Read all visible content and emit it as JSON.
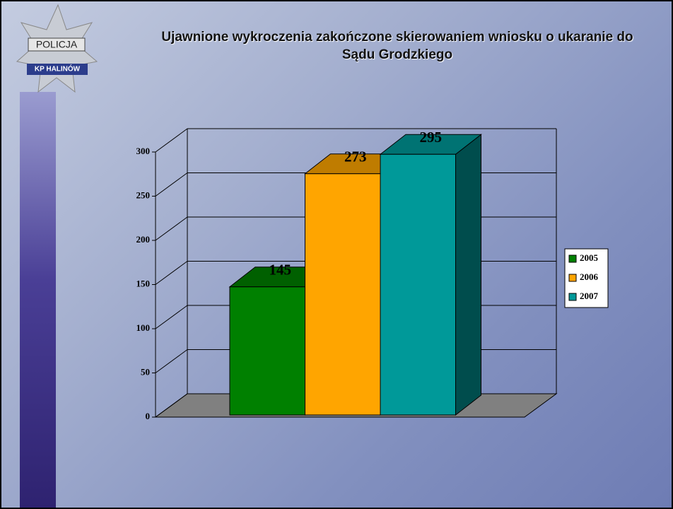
{
  "logo": {
    "top": "POLICJA",
    "bottom": "KP HALINÓW"
  },
  "chart_data": {
    "type": "bar3d",
    "title": "Ujawnione wykroczenia zakończone skierowaniem wniosku o ukaranie do Sądu Grodzkiego",
    "categories": [
      null
    ],
    "series": [
      {
        "name": "2005",
        "color": "#008000",
        "values": [
          145
        ]
      },
      {
        "name": "2006",
        "color": "#ffa500",
        "values": [
          273
        ]
      },
      {
        "name": "2007",
        "color": "#009999",
        "values": [
          295
        ]
      }
    ],
    "ylim": [
      0,
      300
    ],
    "yticks": [
      0,
      50,
      100,
      150,
      200,
      250,
      300
    ],
    "grid": true,
    "legend": "right"
  }
}
